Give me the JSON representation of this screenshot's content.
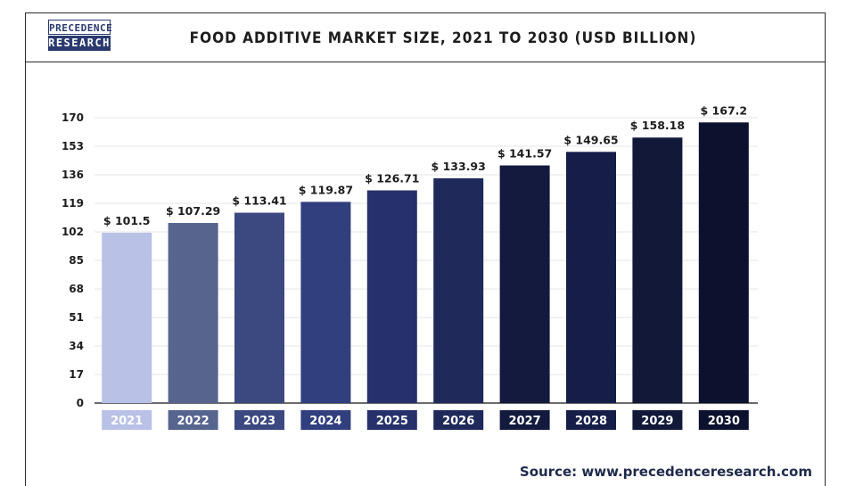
{
  "header": {
    "logo_line1": "PRECEDENCE",
    "logo_line2": "RESEARCH",
    "title": "FOOD ADDITIVE MARKET SIZE, 2021 TO 2030 (USD BILLION)"
  },
  "source": "Source: www.precedenceresearch.com",
  "colors": {
    "brand": "#2a3a6e",
    "bars": [
      "#b9c1e6",
      "#56648e",
      "#3c4880",
      "#313f7e",
      "#26306a",
      "#1f2a5a",
      "#131a3e",
      "#161e48",
      "#111838",
      "#0c112e"
    ]
  },
  "chart_data": {
    "type": "bar",
    "categories": [
      "2021",
      "2022",
      "2023",
      "2024",
      "2025",
      "2026",
      "2027",
      "2028",
      "2029",
      "2030"
    ],
    "values": [
      101.5,
      107.29,
      113.41,
      119.87,
      126.71,
      133.93,
      141.57,
      149.65,
      158.18,
      167.2
    ],
    "data_labels": [
      "$ 101.5",
      "$ 107.29",
      "$ 113.41",
      "$ 119.87",
      "$ 126.71",
      "$ 133.93",
      "$ 141.57",
      "$ 149.65",
      "$ 158.18",
      "$ 167.2"
    ],
    "yticks": [
      0,
      17,
      34,
      51,
      68,
      85,
      102,
      119,
      136,
      153,
      170
    ],
    "ylim": [
      0,
      170
    ],
    "grid": true,
    "title": "FOOD ADDITIVE MARKET SIZE, 2021 TO 2030 (USD BILLION)",
    "xlabel": "",
    "ylabel": ""
  }
}
